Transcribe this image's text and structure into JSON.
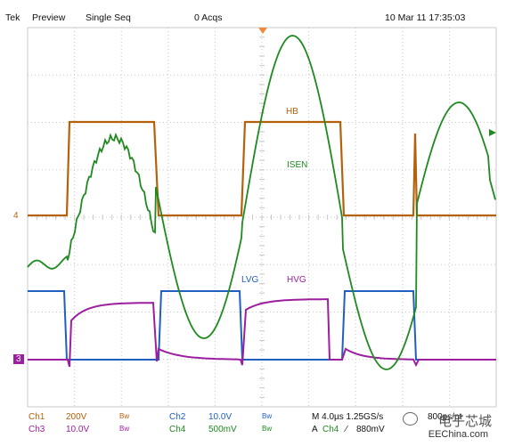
{
  "header": {
    "brand": "Tek",
    "mode": "Preview",
    "acq_mode": "Single Seq",
    "acqs": "0 Acqs",
    "datetime": "10 Mar 11 17:35:03"
  },
  "waveform_labels": {
    "hb": "HB",
    "isen": "ISEN",
    "lvg": "LVG",
    "hvg": "HVG"
  },
  "channel_markers": {
    "ch4": "4",
    "ch3": "3"
  },
  "footer": {
    "ch1": {
      "name": "Ch1",
      "scale": "200V",
      "bw": "Bw"
    },
    "ch2": {
      "name": "Ch2",
      "scale": "10.0V",
      "bw": "Bw"
    },
    "ch3": {
      "name": "Ch3",
      "scale": "10.0V",
      "bw": "Bw"
    },
    "ch4": {
      "name": "Ch4",
      "scale": "500mV",
      "bw": "Bw"
    },
    "timebase": "M 4.0µs 1.25GS/s",
    "record": "800ps/pt",
    "trigger_label": "A",
    "trigger_source": "Ch4",
    "trigger_slope": "∕",
    "trigger_level": "880mV"
  },
  "watermark": {
    "cn": "电子芯城",
    "en": "EEChina.com"
  },
  "colors": {
    "hb": "#b5610c",
    "isen": "#1f8a1f",
    "lvg": "#1f5fc0",
    "hvg": "#9c1fa0",
    "grid": "#c8c8c8",
    "trigger": "#f08a3a"
  }
}
